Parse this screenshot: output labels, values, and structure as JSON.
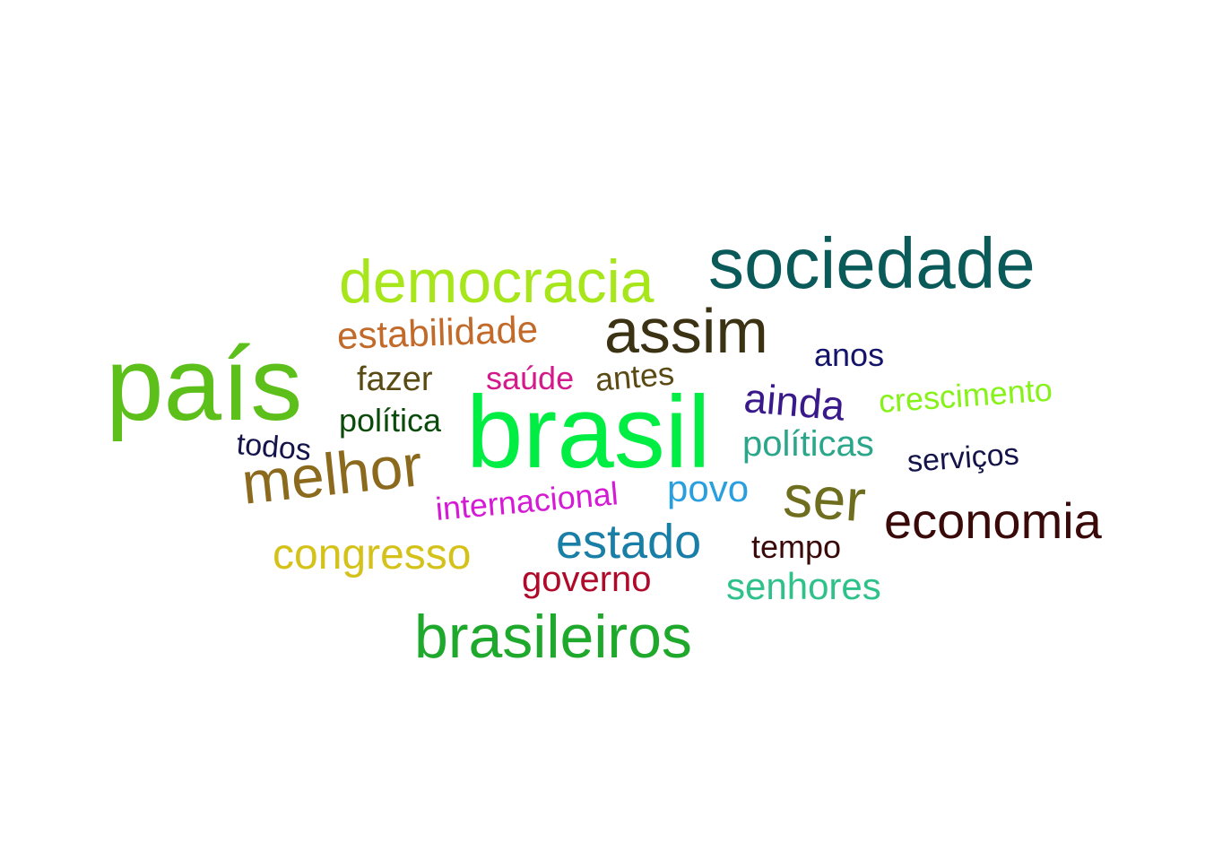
{
  "words": [
    {
      "text": "brasil",
      "color": "#00ee44"
    },
    {
      "text": "país",
      "color": "#5cbf1a"
    },
    {
      "text": "sociedade",
      "color": "#0b5a5a"
    },
    {
      "text": "brasileiros",
      "color": "#1ea82c"
    },
    {
      "text": "democracia",
      "color": "#a6e61a"
    },
    {
      "text": "assim",
      "color": "#3b3214"
    },
    {
      "text": "melhor",
      "color": "#8b6a1e"
    },
    {
      "text": "economia",
      "color": "#3a0a0a"
    },
    {
      "text": "ser",
      "color": "#6e6e1e"
    },
    {
      "text": "estado",
      "color": "#1a7fa6"
    },
    {
      "text": "congresso",
      "color": "#d4c21a"
    },
    {
      "text": "estabilidade",
      "color": "#c26a2a"
    },
    {
      "text": "ainda",
      "color": "#3a1a8a"
    },
    {
      "text": "governo",
      "color": "#b00a2a"
    },
    {
      "text": "senhores",
      "color": "#2ec28a"
    },
    {
      "text": "políticas",
      "color": "#2aa68a"
    },
    {
      "text": "crescimento",
      "color": "#86f21a"
    },
    {
      "text": "internacional",
      "color": "#d41ad4"
    },
    {
      "text": "povo",
      "color": "#2a9fe0"
    },
    {
      "text": "fazer",
      "color": "#5a4a14"
    },
    {
      "text": "saúde",
      "color": "#d41a8a"
    },
    {
      "text": "antes",
      "color": "#5a4a14"
    },
    {
      "text": "política",
      "color": "#0a4a0a"
    },
    {
      "text": "anos",
      "color": "#14146a"
    },
    {
      "text": "serviços",
      "color": "#14144a"
    },
    {
      "text": "tempo",
      "color": "#3a0a0a"
    },
    {
      "text": "todos",
      "color": "#14144a"
    }
  ]
}
